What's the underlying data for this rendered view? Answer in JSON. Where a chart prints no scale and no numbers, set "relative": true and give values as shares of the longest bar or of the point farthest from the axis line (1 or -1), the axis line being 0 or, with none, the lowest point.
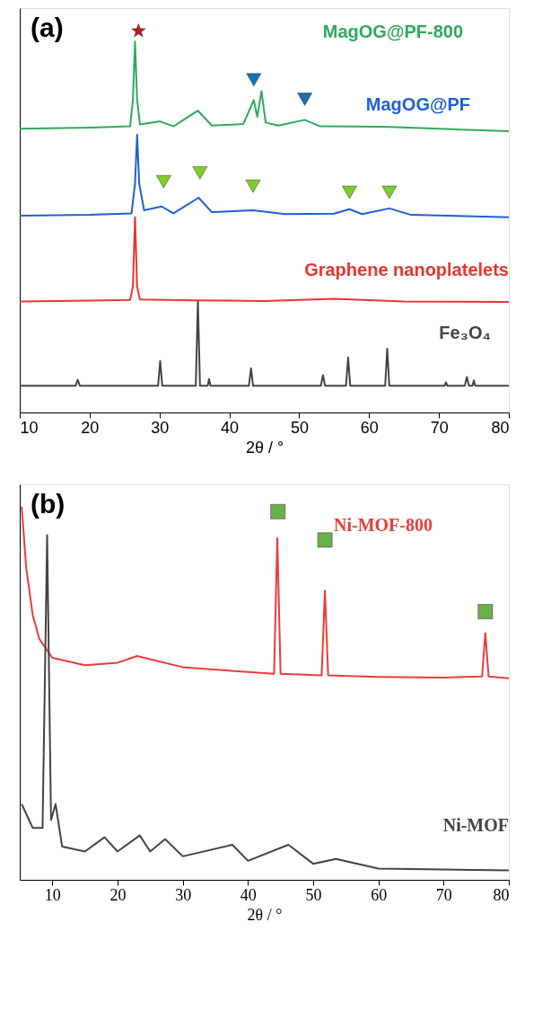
{
  "chart_data": [
    {
      "type": "line",
      "title": "(a)",
      "xlabel": "2θ / °",
      "relative": true,
      "xlim": [
        10,
        80
      ],
      "xticks": [
        10,
        20,
        30,
        40,
        50,
        60,
        70,
        80
      ],
      "tick_labels": "x",
      "grid": false,
      "legend": false,
      "marker": "none",
      "line_style": "solid",
      "series": [
        {
          "name": "MagOG@PF-800",
          "color": "#2eaa5e",
          "x": [
            10,
            20,
            25.8,
            26.2,
            26.5,
            26.8,
            27.2,
            30.1,
            32,
            35.5,
            37.5,
            42,
            43.5,
            44.0,
            44.6,
            45.2,
            47,
            50.8,
            53,
            62,
            80
          ],
          "values": [
            0.744,
            0.747,
            0.75,
            0.82,
            0.972,
            0.82,
            0.755,
            0.763,
            0.75,
            0.791,
            0.752,
            0.756,
            0.819,
            0.775,
            0.842,
            0.76,
            0.752,
            0.767,
            0.75,
            0.749,
            0.737
          ]
        },
        {
          "name": "MagOG@PF",
          "color": "#1f5fd6",
          "x": [
            10,
            20,
            26,
            26.5,
            26.8,
            27.1,
            27.8,
            30.3,
            32,
            35.6,
            37.5,
            43.4,
            48,
            55,
            57.2,
            59,
            62.9,
            66,
            80
          ],
          "values": [
            0.516,
            0.518,
            0.522,
            0.6,
            0.728,
            0.6,
            0.53,
            0.54,
            0.522,
            0.563,
            0.525,
            0.53,
            0.52,
            0.521,
            0.533,
            0.52,
            0.535,
            0.518,
            0.512
          ]
        },
        {
          "name": "Graphene nanoplatelets",
          "color": "#e8352f",
          "x": [
            10,
            20,
            25.8,
            26.2,
            26.5,
            26.8,
            27.2,
            35,
            45,
            55,
            65,
            80
          ],
          "values": [
            0.291,
            0.293,
            0.295,
            0.33,
            0.512,
            0.33,
            0.296,
            0.294,
            0.292,
            0.298,
            0.291,
            0.29
          ]
        },
        {
          "name": "Fe₃O₄",
          "color": "#444444",
          "x": [
            10,
            18.0,
            18.3,
            18.6,
            29.8,
            30.1,
            30.4,
            35.2,
            35.5,
            35.8,
            36.9,
            37.1,
            37.3,
            42.8,
            43.1,
            43.4,
            53.1,
            53.4,
            53.7,
            56.7,
            57.0,
            57.3,
            62.3,
            62.6,
            62.9,
            70.8,
            71.0,
            71.2,
            73.7,
            74.0,
            74.3,
            74.8,
            75.0,
            75.2,
            80
          ],
          "values": [
            0.07,
            0.07,
            0.086,
            0.07,
            0.07,
            0.135,
            0.07,
            0.07,
            0.291,
            0.07,
            0.07,
            0.088,
            0.07,
            0.07,
            0.116,
            0.07,
            0.07,
            0.098,
            0.07,
            0.07,
            0.144,
            0.07,
            0.07,
            0.167,
            0.07,
            0.07,
            0.079,
            0.07,
            0.07,
            0.093,
            0.07,
            0.07,
            0.084,
            0.07,
            0.07
          ]
        },
        {
          "type": "scatter",
          "marker": "star",
          "color": "#c0161b",
          "x": [
            27.0
          ],
          "values": [
            1.0
          ]
        },
        {
          "type": "scatter",
          "marker": "triangle",
          "color": "#1a6fb0",
          "x": [
            43.5,
            50.8
          ],
          "values": [
            0.872,
            0.821
          ]
        },
        {
          "type": "scatter",
          "marker": "triangle",
          "color": "#7ccf2a",
          "x": [
            30.6,
            35.8,
            43.4,
            57.2,
            62.9
          ],
          "values": [
            0.605,
            0.628,
            0.593,
            0.577,
            0.577
          ]
        }
      ]
    },
    {
      "type": "line",
      "title": "(b)",
      "xlabel": "2θ / °",
      "relative": true,
      "xlim": [
        5,
        80
      ],
      "xticks": [
        10,
        20,
        30,
        40,
        50,
        60,
        70,
        80
      ],
      "tick_labels": "x",
      "grid": false,
      "legend": false,
      "marker": "none",
      "line_style": "solid",
      "series": [
        {
          "name": "Ni-MOF-800",
          "color": "#ee3b3b",
          "x": [
            5.3,
            6,
            7,
            8,
            10,
            15,
            20,
            23,
            30,
            40,
            44.0,
            44.5,
            45.0,
            51.3,
            51.8,
            52.3,
            60,
            70,
            75.9,
            76.4,
            76.9,
            80
          ],
          "values": [
            1.0,
            0.835,
            0.709,
            0.646,
            0.595,
            0.575,
            0.582,
            0.6,
            0.57,
            0.557,
            0.552,
            0.916,
            0.552,
            0.548,
            0.775,
            0.548,
            0.544,
            0.542,
            0.545,
            0.661,
            0.545,
            0.54
          ]
        },
        {
          "name": "Ni-MOF",
          "color": "#444444",
          "x": [
            5.3,
            7,
            8.5,
            9.2,
            9.8,
            10.5,
            11.5,
            15,
            18,
            20,
            23.4,
            25,
            27.3,
            30,
            37.6,
            40,
            46.2,
            50,
            53.5,
            60,
            80
          ],
          "values": [
            0.203,
            0.139,
            0.139,
            0.924,
            0.16,
            0.203,
            0.089,
            0.076,
            0.114,
            0.076,
            0.119,
            0.076,
            0.109,
            0.063,
            0.094,
            0.051,
            0.094,
            0.043,
            0.056,
            0.03,
            0.025
          ]
        },
        {
          "type": "scatter",
          "marker": "square",
          "color": "#6ab04c",
          "x": [
            44.6,
            51.8,
            76.4
          ],
          "values": [
            0.987,
            0.911,
            0.719
          ]
        }
      ]
    }
  ]
}
